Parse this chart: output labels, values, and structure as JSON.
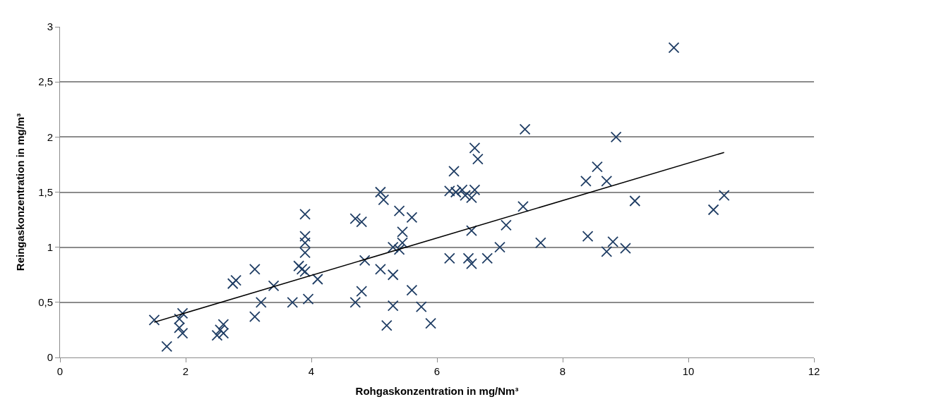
{
  "chart_data": {
    "type": "scatter",
    "xlabel": "Rohgaskonzentration in mg/Nm³",
    "ylabel": "Reingaskonzentration in mg/m³",
    "xlim": [
      0,
      12
    ],
    "xticks": [
      0,
      2,
      4,
      6,
      8,
      10,
      12
    ],
    "ylim": [
      0,
      3
    ],
    "yticks": [
      0,
      {
        "value": 0.5,
        "label": "0,5"
      },
      1,
      {
        "value": 1.5,
        "label": "1,5"
      },
      2,
      {
        "value": 2.5,
        "label": "2,5"
      },
      3
    ],
    "grid": "y",
    "marker": "cross",
    "series": [
      {
        "color": "#1f3d64",
        "x": [
          1.5,
          1.7,
          1.9,
          1.9,
          1.95,
          1.95,
          2.5,
          2.6,
          2.6,
          2.55,
          2.75,
          2.8,
          3.1,
          3.1,
          3.2,
          3.4,
          3.7,
          3.8,
          3.85,
          3.9,
          3.9,
          3.9,
          3.9,
          3.95,
          3.9,
          4.1,
          4.7,
          4.8,
          4.7,
          4.85,
          4.8,
          5.1,
          5.15,
          5.1,
          5.2,
          5.3,
          5.3,
          5.3,
          5.4,
          5.45,
          5.45,
          5.4,
          5.6,
          5.6,
          5.75,
          5.9,
          6.2,
          6.27,
          6.3,
          6.4,
          6.45,
          6.55,
          6.6,
          6.65,
          6.6,
          6.2,
          6.5,
          6.55,
          6.55,
          6.8,
          7.0,
          7.1,
          7.37,
          7.4,
          7.65,
          8.37,
          8.4,
          8.55,
          8.7,
          8.7,
          8.8,
          8.85,
          9.0,
          9.15,
          9.77,
          10.4,
          10.57
        ],
        "values": [
          0.34,
          0.1,
          0.35,
          0.27,
          0.22,
          0.4,
          0.2,
          0.3,
          0.22,
          0.25,
          0.67,
          0.7,
          0.8,
          0.37,
          0.5,
          0.65,
          0.5,
          0.83,
          0.8,
          1.3,
          1.1,
          0.95,
          1.04,
          0.53,
          0.78,
          0.71,
          1.26,
          1.23,
          0.5,
          0.88,
          0.6,
          1.5,
          1.43,
          0.8,
          0.29,
          1.0,
          0.75,
          0.47,
          1.33,
          1.14,
          1.04,
          0.98,
          1.27,
          0.61,
          0.46,
          0.31,
          1.51,
          1.69,
          1.5,
          1.52,
          1.47,
          1.45,
          1.9,
          1.8,
          1.52,
          0.9,
          0.9,
          0.85,
          1.15,
          0.9,
          1.0,
          1.2,
          1.37,
          2.07,
          1.04,
          1.6,
          1.1,
          1.73,
          1.6,
          0.96,
          1.05,
          2.0,
          0.99,
          1.42,
          2.81,
          1.34,
          1.47
        ]
      },
      {
        "color": "#000000",
        "type": "line",
        "marker": "none",
        "x": [
          1.5,
          10.57
        ],
        "values": [
          0.32,
          1.86
        ]
      }
    ]
  }
}
